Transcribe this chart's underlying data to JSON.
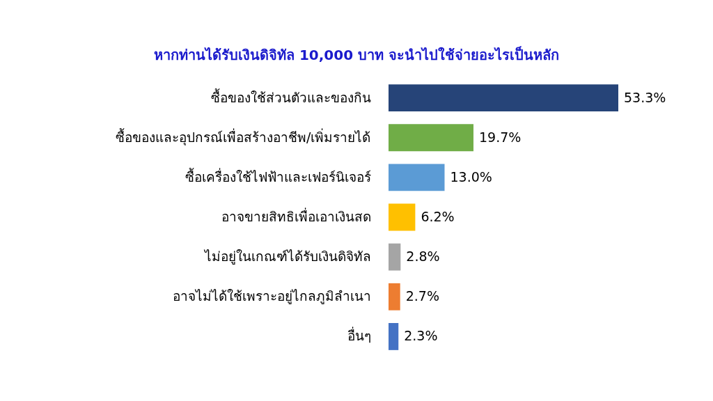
{
  "chart_data": {
    "type": "bar",
    "orientation": "horizontal",
    "title": "หากท่านได้รับเงินดิจิทัล 10,000 บาท จะนำไปใช้จ่ายอะไรเป็นหลัก",
    "categories": [
      "ซื้อของใช้ส่วนตัวและของกิน",
      "ซื้อของและอุปกรณ์เพื่อสร้างอาชีพ/เพิ่มรายได้",
      "ซื้อเครื่องใช้ไฟฟ้าและเฟอร์นิเจอร์",
      "อาจขายสิทธิเพื่อเอาเงินสด",
      "ไม่อยู่ในเกณฑ์ได้รับเงินดิจิทัล",
      "อาจไม่ได้ใช้เพราะอยู่ไกลภูมิลำเนา",
      "อื่นๆ"
    ],
    "values": [
      53.3,
      19.7,
      13.0,
      6.2,
      2.8,
      2.7,
      2.3
    ],
    "value_labels": [
      "53.3%",
      "19.7%",
      "13.0%",
      "6.2%",
      "2.8%",
      "2.7%",
      "2.3%"
    ],
    "colors": [
      "#264478",
      "#70ad47",
      "#5b9bd5",
      "#ffc000",
      "#a5a5a5",
      "#ed7d31",
      "#4472c4"
    ]
  }
}
